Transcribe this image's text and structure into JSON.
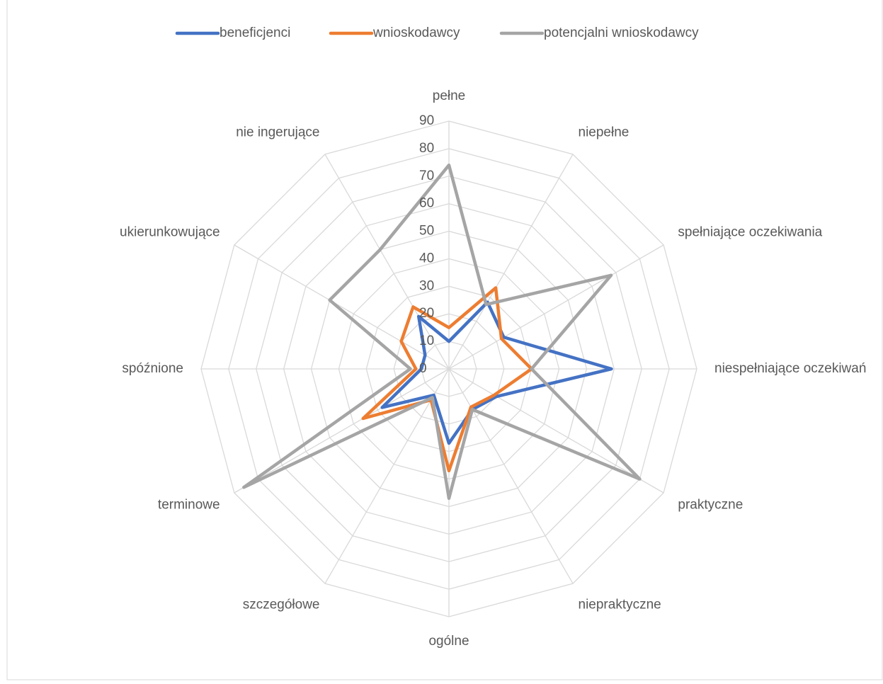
{
  "chart_data": {
    "type": "radar",
    "categories": [
      "pełne",
      "niepełne",
      "spełniające oczekiwania",
      "niespełniające oczekiwań",
      "praktyczne",
      "niepraktyczne",
      "ogólne",
      "szczegółowe",
      "terminowe",
      "spóźnione",
      "ukierunkowujące",
      "nie ingerujące"
    ],
    "series": [
      {
        "name": "beneficjenci",
        "color": "#4472c4",
        "values": [
          10,
          28,
          23,
          59,
          20,
          17,
          27,
          11,
          28,
          10,
          10,
          22
        ]
      },
      {
        "name": "wnioskodawcy",
        "color": "#ed7d31",
        "values": [
          15,
          34,
          22,
          30,
          19,
          16,
          37,
          13,
          36,
          12,
          20,
          26
        ]
      },
      {
        "name": "potencjalni wnioskodawcy",
        "color": "#a5a5a5",
        "values": [
          74,
          27,
          68,
          30,
          80,
          17,
          47,
          12,
          86,
          14,
          50,
          50
        ]
      }
    ],
    "ylim": [
      0,
      90
    ],
    "yticks": [
      0,
      10,
      20,
      30,
      40,
      50,
      60,
      70,
      80,
      90
    ],
    "grid": true,
    "legend": "top"
  }
}
